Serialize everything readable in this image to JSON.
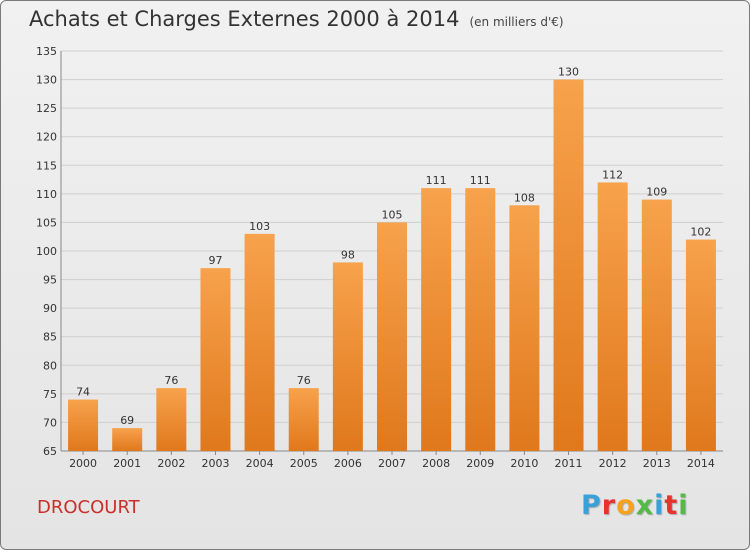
{
  "header": {
    "title": "Achats et Charges Externes 2000 à 2014",
    "subtitle": "(en milliers d'€)"
  },
  "footer": {
    "commune": "DROCOURT",
    "brand": "Proxiti"
  },
  "colors": {
    "bar_top": "#f7a24c",
    "bar_bottom": "#e0781c",
    "grid": "#cfcfcf",
    "commune_text": "#c9302c"
  },
  "chart_data": {
    "type": "bar",
    "title": "Achats et Charges Externes 2000 à 2014",
    "subtitle": "(en milliers d'€)",
    "xlabel": "",
    "ylabel": "",
    "categories": [
      "2000",
      "2001",
      "2002",
      "2003",
      "2004",
      "2005",
      "2006",
      "2007",
      "2008",
      "2009",
      "2010",
      "2011",
      "2012",
      "2013",
      "2014"
    ],
    "values": [
      74,
      69,
      76,
      97,
      103,
      76,
      98,
      105,
      111,
      111,
      108,
      130,
      112,
      109,
      102
    ],
    "ylim": [
      65,
      135
    ],
    "yticks": [
      65,
      70,
      75,
      80,
      85,
      90,
      95,
      100,
      105,
      110,
      115,
      120,
      125,
      130,
      135
    ],
    "grid": true,
    "legend": "none",
    "data_labels": true
  }
}
